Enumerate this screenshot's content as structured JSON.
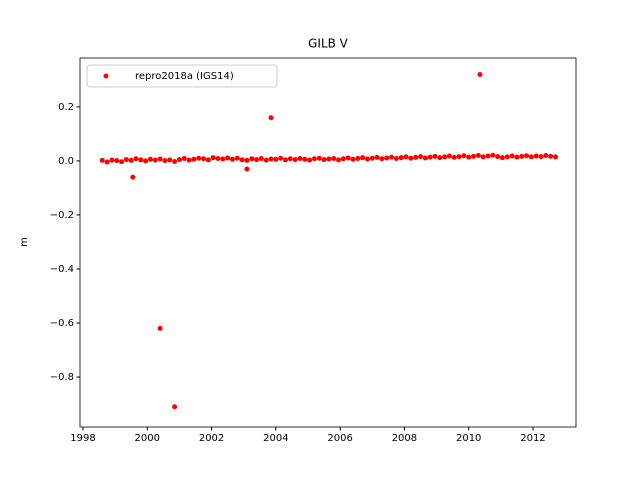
{
  "chart_data": {
    "type": "scatter",
    "title": "GILB V",
    "ylabel": "m",
    "xlim": [
      1997.907,
      2013.338
    ],
    "ylim": [
      -0.985,
      0.381
    ],
    "xticks": [
      1998,
      2000,
      2002,
      2004,
      2006,
      2008,
      2010,
      2012
    ],
    "yticks": [
      {
        "value": -0.8,
        "label": "−0.8"
      },
      {
        "value": -0.6,
        "label": "−0.6"
      },
      {
        "value": -0.4,
        "label": "−0.4"
      },
      {
        "value": -0.2,
        "label": "−0.2"
      },
      {
        "value": 0,
        "label": "0.0"
      },
      0.2
    ],
    "legend": "upper left",
    "series": [
      {
        "name": "repro2018a (IGS14)",
        "color": "#ff0000",
        "x": [
          1998.6,
          1998.75,
          1998.9,
          1999.05,
          1999.2,
          1999.35,
          1999.5,
          1999.65,
          1999.8,
          1999.95,
          2000.1,
          2000.25,
          2000.4,
          2000.55,
          2000.7,
          2000.85,
          2001.0,
          2001.15,
          2001.3,
          2001.45,
          2001.6,
          2001.75,
          2001.9,
          2002.05,
          2002.2,
          2002.35,
          2002.5,
          2002.65,
          2002.8,
          2002.95,
          2003.1,
          2003.25,
          2003.4,
          2003.55,
          2003.7,
          2003.85,
          2004.0,
          2004.15,
          2004.3,
          2004.45,
          2004.6,
          2004.75,
          2004.9,
          2005.05,
          2005.2,
          2005.35,
          2005.5,
          2005.65,
          2005.8,
          2005.95,
          2006.1,
          2006.25,
          2006.4,
          2006.55,
          2006.7,
          2006.85,
          2007.0,
          2007.15,
          2007.3,
          2007.45,
          2007.6,
          2007.75,
          2007.9,
          2008.05,
          2008.2,
          2008.35,
          2008.5,
          2008.65,
          2008.8,
          2008.95,
          2009.1,
          2009.25,
          2009.4,
          2009.55,
          2009.7,
          2009.85,
          2010.0,
          2010.15,
          2010.3,
          2010.45,
          2010.6,
          2010.75,
          2010.9,
          2011.05,
          2011.2,
          2011.35,
          2011.5,
          2011.65,
          2011.8,
          2011.95,
          2012.1,
          2012.25,
          2012.4,
          2012.55,
          2012.7,
          1999.55,
          2000.4,
          2000.85,
          2003.1,
          2003.85,
          2010.35
        ],
        "values": [
          0.002,
          -0.004,
          0.003,
          0.001,
          -0.003,
          0.005,
          0.002,
          0.008,
          0.004,
          0,
          0.006,
          0.003,
          0.007,
          0.001,
          0.004,
          -0.002,
          0.005,
          0.009,
          0.003,
          0.006,
          0.01,
          0.008,
          0.004,
          0.012,
          0.009,
          0.007,
          0.011,
          0.006,
          0.01,
          0.004,
          0.002,
          0.008,
          0.005,
          0.009,
          0.003,
          0.007,
          0.006,
          0.01,
          0.004,
          0.008,
          0.005,
          0.009,
          0.006,
          0.003,
          0.008,
          0.01,
          0.005,
          0.007,
          0.009,
          0.004,
          0.008,
          0.011,
          0.006,
          0.009,
          0.012,
          0.007,
          0.01,
          0.013,
          0.008,
          0.011,
          0.014,
          0.009,
          0.012,
          0.015,
          0.01,
          0.013,
          0.016,
          0.011,
          0.014,
          0.017,
          0.012,
          0.015,
          0.018,
          0.013,
          0.016,
          0.019,
          0.014,
          0.017,
          0.02,
          0.015,
          0.018,
          0.021,
          0.016,
          0.012,
          0.015,
          0.018,
          0.014,
          0.017,
          0.019,
          0.015,
          0.018,
          0.016,
          0.02,
          0.017,
          0.015,
          -0.06,
          -0.62,
          -0.91,
          -0.03,
          0.16,
          0.32
        ]
      }
    ]
  }
}
